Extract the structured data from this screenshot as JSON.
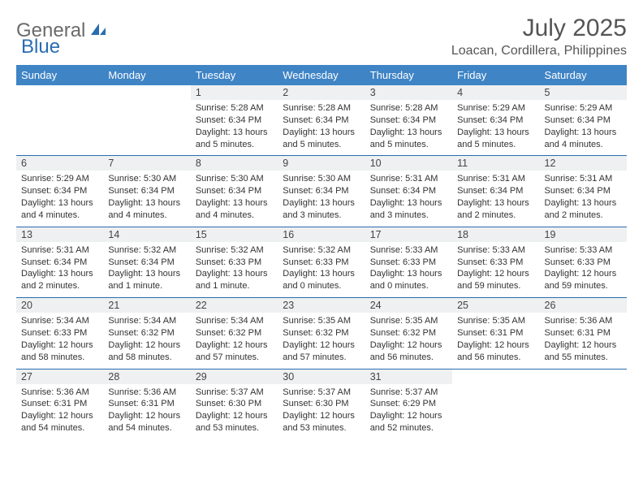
{
  "brand": {
    "part1": "General",
    "part2": "Blue"
  },
  "title": "July 2025",
  "location": "Loacan, Cordillera, Philippines",
  "colors": {
    "header_bg": "#3f84c5",
    "header_text": "#ffffff",
    "daynum_bg": "#eef0f1",
    "rule": "#2a6db0",
    "brand_gray": "#6a6a6a",
    "brand_blue": "#2a6db0",
    "title_gray": "#555555",
    "body_text": "#333333",
    "page_bg": "#ffffff"
  },
  "typography": {
    "month_title_pt": 30,
    "location_pt": 16,
    "dayheader_pt": 13,
    "daynum_pt": 12.5,
    "detail_pt": 11,
    "font_family": "Arial"
  },
  "day_headers": [
    "Sunday",
    "Monday",
    "Tuesday",
    "Wednesday",
    "Thursday",
    "Friday",
    "Saturday"
  ],
  "weeks": [
    [
      null,
      null,
      {
        "n": "1",
        "sr": "5:28 AM",
        "ss": "6:34 PM",
        "dl": "13 hours and 5 minutes."
      },
      {
        "n": "2",
        "sr": "5:28 AM",
        "ss": "6:34 PM",
        "dl": "13 hours and 5 minutes."
      },
      {
        "n": "3",
        "sr": "5:28 AM",
        "ss": "6:34 PM",
        "dl": "13 hours and 5 minutes."
      },
      {
        "n": "4",
        "sr": "5:29 AM",
        "ss": "6:34 PM",
        "dl": "13 hours and 5 minutes."
      },
      {
        "n": "5",
        "sr": "5:29 AM",
        "ss": "6:34 PM",
        "dl": "13 hours and 4 minutes."
      }
    ],
    [
      {
        "n": "6",
        "sr": "5:29 AM",
        "ss": "6:34 PM",
        "dl": "13 hours and 4 minutes."
      },
      {
        "n": "7",
        "sr": "5:30 AM",
        "ss": "6:34 PM",
        "dl": "13 hours and 4 minutes."
      },
      {
        "n": "8",
        "sr": "5:30 AM",
        "ss": "6:34 PM",
        "dl": "13 hours and 4 minutes."
      },
      {
        "n": "9",
        "sr": "5:30 AM",
        "ss": "6:34 PM",
        "dl": "13 hours and 3 minutes."
      },
      {
        "n": "10",
        "sr": "5:31 AM",
        "ss": "6:34 PM",
        "dl": "13 hours and 3 minutes."
      },
      {
        "n": "11",
        "sr": "5:31 AM",
        "ss": "6:34 PM",
        "dl": "13 hours and 2 minutes."
      },
      {
        "n": "12",
        "sr": "5:31 AM",
        "ss": "6:34 PM",
        "dl": "13 hours and 2 minutes."
      }
    ],
    [
      {
        "n": "13",
        "sr": "5:31 AM",
        "ss": "6:34 PM",
        "dl": "13 hours and 2 minutes."
      },
      {
        "n": "14",
        "sr": "5:32 AM",
        "ss": "6:34 PM",
        "dl": "13 hours and 1 minute."
      },
      {
        "n": "15",
        "sr": "5:32 AM",
        "ss": "6:33 PM",
        "dl": "13 hours and 1 minute."
      },
      {
        "n": "16",
        "sr": "5:32 AM",
        "ss": "6:33 PM",
        "dl": "13 hours and 0 minutes."
      },
      {
        "n": "17",
        "sr": "5:33 AM",
        "ss": "6:33 PM",
        "dl": "13 hours and 0 minutes."
      },
      {
        "n": "18",
        "sr": "5:33 AM",
        "ss": "6:33 PM",
        "dl": "12 hours and 59 minutes."
      },
      {
        "n": "19",
        "sr": "5:33 AM",
        "ss": "6:33 PM",
        "dl": "12 hours and 59 minutes."
      }
    ],
    [
      {
        "n": "20",
        "sr": "5:34 AM",
        "ss": "6:33 PM",
        "dl": "12 hours and 58 minutes."
      },
      {
        "n": "21",
        "sr": "5:34 AM",
        "ss": "6:32 PM",
        "dl": "12 hours and 58 minutes."
      },
      {
        "n": "22",
        "sr": "5:34 AM",
        "ss": "6:32 PM",
        "dl": "12 hours and 57 minutes."
      },
      {
        "n": "23",
        "sr": "5:35 AM",
        "ss": "6:32 PM",
        "dl": "12 hours and 57 minutes."
      },
      {
        "n": "24",
        "sr": "5:35 AM",
        "ss": "6:32 PM",
        "dl": "12 hours and 56 minutes."
      },
      {
        "n": "25",
        "sr": "5:35 AM",
        "ss": "6:31 PM",
        "dl": "12 hours and 56 minutes."
      },
      {
        "n": "26",
        "sr": "5:36 AM",
        "ss": "6:31 PM",
        "dl": "12 hours and 55 minutes."
      }
    ],
    [
      {
        "n": "27",
        "sr": "5:36 AM",
        "ss": "6:31 PM",
        "dl": "12 hours and 54 minutes."
      },
      {
        "n": "28",
        "sr": "5:36 AM",
        "ss": "6:31 PM",
        "dl": "12 hours and 54 minutes."
      },
      {
        "n": "29",
        "sr": "5:37 AM",
        "ss": "6:30 PM",
        "dl": "12 hours and 53 minutes."
      },
      {
        "n": "30",
        "sr": "5:37 AM",
        "ss": "6:30 PM",
        "dl": "12 hours and 53 minutes."
      },
      {
        "n": "31",
        "sr": "5:37 AM",
        "ss": "6:29 PM",
        "dl": "12 hours and 52 minutes."
      },
      null,
      null
    ]
  ],
  "labels": {
    "sunrise": "Sunrise: ",
    "sunset": "Sunset: ",
    "daylight": "Daylight: "
  }
}
